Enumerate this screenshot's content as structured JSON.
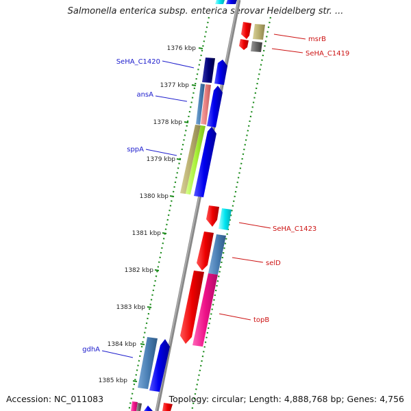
{
  "title": "Salmonella enterica subsp. enterica serovar Heidelberg str. ...",
  "footer": {
    "accession": "Accession: NC_011083",
    "summary": "Topology: circular; Length: 4,888,768 bp; Genes: 4,756"
  },
  "ticks": [
    "1376 kbp",
    "1377 kbp",
    "1378 kbp",
    "1379 kbp",
    "1380 kbp",
    "1381 kbp",
    "1382 kbp",
    "1383 kbp",
    "1384 kbp",
    "1385 kbp"
  ],
  "labels": {
    "msrB": "msrB",
    "SeHA_C1419": "SeHA_C1419",
    "SeHA_C1420": "SeHA_C1420",
    "ansA": "ansA",
    "sppA": "sppA",
    "SeHA_C1423": "SeHA_C1423",
    "selD": "selD",
    "topB": "topB",
    "gdhA": "gdhA"
  },
  "colors": {
    "blue": "#0000ee",
    "navy": "#000077",
    "steel": "#4a7fb5",
    "red": "#ee0000",
    "pink": "#ee1188",
    "cyan": "#00e5f0",
    "khaki": "#b8ae6e",
    "lime": "#aaf23a",
    "salmon": "#e88080",
    "gray": "#666666",
    "green_dots": "#1a8a1a",
    "label_blue": "#1a1acc",
    "label_red": "#cc1111"
  }
}
